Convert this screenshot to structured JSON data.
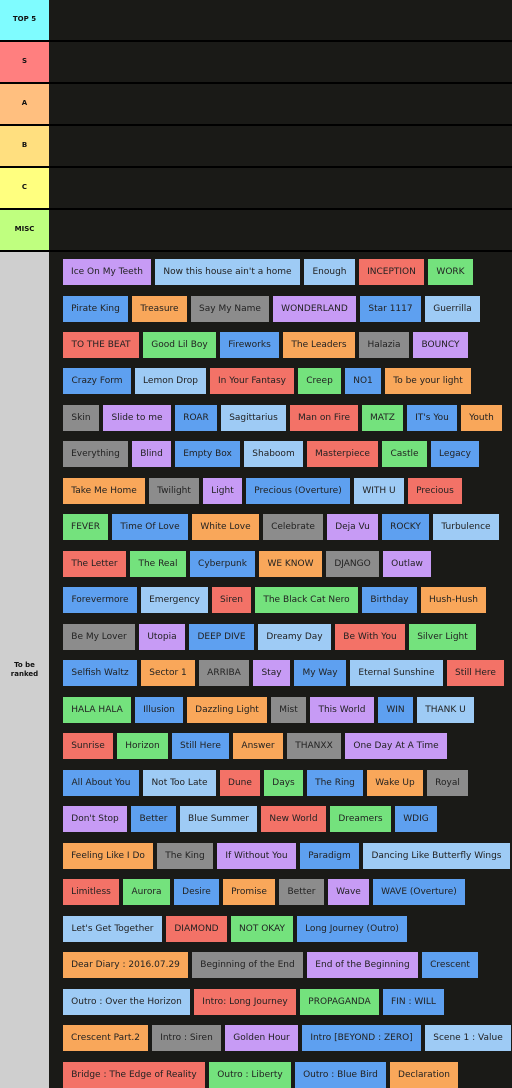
{
  "tiers": [
    {
      "label": "TOP 5",
      "color": "#7ffcff"
    },
    {
      "label": "S",
      "color": "#ff7f7f"
    },
    {
      "label": "A",
      "color": "#ffbf7f"
    },
    {
      "label": "B",
      "color": "#ffdf7f"
    },
    {
      "label": "C",
      "color": "#ffff7f"
    },
    {
      "label": "MISC",
      "color": "#bfff7f"
    },
    {
      "label": "To be\nranked",
      "color": "#cfcfcf"
    }
  ],
  "palette": {
    "purple": "#c79bf5",
    "blue": "#5ea0f0",
    "lightblue": "#9ecbf5",
    "red": "#f37267",
    "green": "#74e27d",
    "orange": "#f9a75a",
    "gray": "#8c8c8c"
  },
  "items": [
    {
      "text": "Ice On My Teeth",
      "color": "purple"
    },
    {
      "text": "Now this house ain't a home",
      "color": "lightblue"
    },
    {
      "text": "Enough",
      "color": "lightblue"
    },
    {
      "text": "INCEPTION",
      "color": "red"
    },
    {
      "text": "WORK",
      "color": "green"
    },
    {
      "text": "Pirate King",
      "color": "blue"
    },
    {
      "text": "Treasure",
      "color": "orange"
    },
    {
      "text": "Say My Name",
      "color": "gray"
    },
    {
      "text": "WONDERLAND",
      "color": "purple"
    },
    {
      "text": "Star 1117",
      "color": "blue"
    },
    {
      "text": "Guerrilla",
      "color": "lightblue"
    },
    {
      "text": "TO THE BEAT",
      "color": "red"
    },
    {
      "text": "Good Lil Boy",
      "color": "green"
    },
    {
      "text": "Fireworks",
      "color": "blue"
    },
    {
      "text": "The Leaders",
      "color": "orange"
    },
    {
      "text": "Halazia",
      "color": "gray"
    },
    {
      "text": "BOUNCY",
      "color": "purple"
    },
    {
      "text": "Crazy Form",
      "color": "blue"
    },
    {
      "text": "Lemon Drop",
      "color": "lightblue"
    },
    {
      "text": "In Your Fantasy",
      "color": "red"
    },
    {
      "text": "Creep",
      "color": "green"
    },
    {
      "text": "NO1",
      "color": "blue"
    },
    {
      "text": "To be your light",
      "color": "orange"
    },
    {
      "text": "Skin",
      "color": "gray"
    },
    {
      "text": "Slide to me",
      "color": "purple"
    },
    {
      "text": "ROAR",
      "color": "blue"
    },
    {
      "text": "Sagittarius",
      "color": "lightblue"
    },
    {
      "text": "Man on Fire",
      "color": "red"
    },
    {
      "text": "MATZ",
      "color": "green"
    },
    {
      "text": "IT's You",
      "color": "blue"
    },
    {
      "text": "Youth",
      "color": "orange"
    },
    {
      "text": "Everything",
      "color": "gray"
    },
    {
      "text": "Blind",
      "color": "purple"
    },
    {
      "text": "Empty Box",
      "color": "blue"
    },
    {
      "text": "Shaboom",
      "color": "lightblue"
    },
    {
      "text": "Masterpiece",
      "color": "red"
    },
    {
      "text": "Castle",
      "color": "green"
    },
    {
      "text": "Legacy",
      "color": "blue"
    },
    {
      "text": "Take Me Home",
      "color": "orange"
    },
    {
      "text": "Twilight",
      "color": "gray"
    },
    {
      "text": "Light",
      "color": "purple"
    },
    {
      "text": "Precious (Overture)",
      "color": "blue"
    },
    {
      "text": "WITH U",
      "color": "lightblue"
    },
    {
      "text": "Precious",
      "color": "red"
    },
    {
      "text": "FEVER",
      "color": "green"
    },
    {
      "text": "Time Of Love",
      "color": "blue"
    },
    {
      "text": "White Love",
      "color": "orange"
    },
    {
      "text": "Celebrate",
      "color": "gray"
    },
    {
      "text": "Deja Vu",
      "color": "purple"
    },
    {
      "text": "ROCKY",
      "color": "blue"
    },
    {
      "text": "Turbulence",
      "color": "lightblue"
    },
    {
      "text": "The Letter",
      "color": "red"
    },
    {
      "text": "The Real",
      "color": "green"
    },
    {
      "text": "Cyberpunk",
      "color": "blue"
    },
    {
      "text": "WE KNOW",
      "color": "orange"
    },
    {
      "text": "DJANGO",
      "color": "gray"
    },
    {
      "text": "Outlaw",
      "color": "purple"
    },
    {
      "text": "Forevermore",
      "color": "blue"
    },
    {
      "text": "Emergency",
      "color": "lightblue"
    },
    {
      "text": "Siren",
      "color": "red"
    },
    {
      "text": "The Black Cat Nero",
      "color": "green"
    },
    {
      "text": "Birthday",
      "color": "blue"
    },
    {
      "text": "Hush-Hush",
      "color": "orange"
    },
    {
      "text": "Be My Lover",
      "color": "gray"
    },
    {
      "text": "Utopia",
      "color": "purple"
    },
    {
      "text": "DEEP DIVE",
      "color": "blue"
    },
    {
      "text": "Dreamy Day",
      "color": "lightblue"
    },
    {
      "text": "Be With You",
      "color": "red"
    },
    {
      "text": "Silver Light",
      "color": "green"
    },
    {
      "text": "Selfish Waltz",
      "color": "blue"
    },
    {
      "text": "Sector 1",
      "color": "orange"
    },
    {
      "text": "ARRIBA",
      "color": "gray"
    },
    {
      "text": "Stay",
      "color": "purple"
    },
    {
      "text": "My Way",
      "color": "blue"
    },
    {
      "text": "Eternal Sunshine",
      "color": "lightblue"
    },
    {
      "text": "Still Here",
      "color": "red"
    },
    {
      "text": "HALA HALA",
      "color": "green"
    },
    {
      "text": "Illusion",
      "color": "blue"
    },
    {
      "text": "Dazzling Light",
      "color": "orange"
    },
    {
      "text": "Mist",
      "color": "gray"
    },
    {
      "text": "This World",
      "color": "purple"
    },
    {
      "text": "WIN",
      "color": "blue"
    },
    {
      "text": "THANK U",
      "color": "lightblue"
    },
    {
      "text": "Sunrise",
      "color": "red"
    },
    {
      "text": "Horizon",
      "color": "green"
    },
    {
      "text": "Still Here",
      "color": "blue"
    },
    {
      "text": "Answer",
      "color": "orange"
    },
    {
      "text": "THANXX",
      "color": "gray"
    },
    {
      "text": "One Day At A Time",
      "color": "purple"
    },
    {
      "text": "All About You",
      "color": "blue"
    },
    {
      "text": "Not Too Late",
      "color": "lightblue"
    },
    {
      "text": "Dune",
      "color": "red"
    },
    {
      "text": "Days",
      "color": "green"
    },
    {
      "text": "The Ring",
      "color": "blue"
    },
    {
      "text": "Wake Up",
      "color": "orange"
    },
    {
      "text": "Royal",
      "color": "gray"
    },
    {
      "text": "Don't Stop",
      "color": "purple"
    },
    {
      "text": "Better",
      "color": "blue"
    },
    {
      "text": "Blue Summer",
      "color": "lightblue"
    },
    {
      "text": "New World",
      "color": "red"
    },
    {
      "text": "Dreamers",
      "color": "green"
    },
    {
      "text": "WDIG",
      "color": "blue"
    },
    {
      "text": "Feeling Like I Do",
      "color": "orange"
    },
    {
      "text": "The King",
      "color": "gray"
    },
    {
      "text": "If Without You",
      "color": "purple"
    },
    {
      "text": "Paradigm",
      "color": "blue"
    },
    {
      "text": "Dancing Like Butterfly Wings",
      "color": "lightblue"
    },
    {
      "text": "Limitless",
      "color": "red"
    },
    {
      "text": "Aurora",
      "color": "green"
    },
    {
      "text": "Desire",
      "color": "blue"
    },
    {
      "text": "Promise",
      "color": "orange"
    },
    {
      "text": "Better",
      "color": "gray"
    },
    {
      "text": "Wave",
      "color": "purple"
    },
    {
      "text": "WAVE (Overture)",
      "color": "blue"
    },
    {
      "text": "Let's Get Together",
      "color": "lightblue"
    },
    {
      "text": "DIAMOND",
      "color": "red"
    },
    {
      "text": "NOT OKAY",
      "color": "green"
    },
    {
      "text": "Long Journey (Outro)",
      "color": "blue"
    },
    {
      "text": "Dear Diary : 2016.07.29",
      "color": "orange"
    },
    {
      "text": "Beginning of the End",
      "color": "gray"
    },
    {
      "text": "End of the Beginning",
      "color": "purple"
    },
    {
      "text": "Crescent",
      "color": "blue"
    },
    {
      "text": "Outro : Over the Horizon",
      "color": "lightblue"
    },
    {
      "text": "Intro: Long Journey",
      "color": "red"
    },
    {
      "text": "PROPAGANDA",
      "color": "green"
    },
    {
      "text": "FIN : WILL",
      "color": "blue"
    },
    {
      "text": "Crescent Part.2",
      "color": "orange"
    },
    {
      "text": "Intro : Siren",
      "color": "gray"
    },
    {
      "text": "Golden Hour",
      "color": "purple"
    },
    {
      "text": "Intro [BEYOND : ZERO]",
      "color": "blue"
    },
    {
      "text": "Scene 1 : Value",
      "color": "lightblue"
    },
    {
      "text": "Bridge : The Edge of Reality",
      "color": "red"
    },
    {
      "text": "Outro : Liberty",
      "color": "green"
    },
    {
      "text": "Outro : Blue Bird",
      "color": "blue"
    },
    {
      "text": "Declaration",
      "color": "orange"
    }
  ]
}
